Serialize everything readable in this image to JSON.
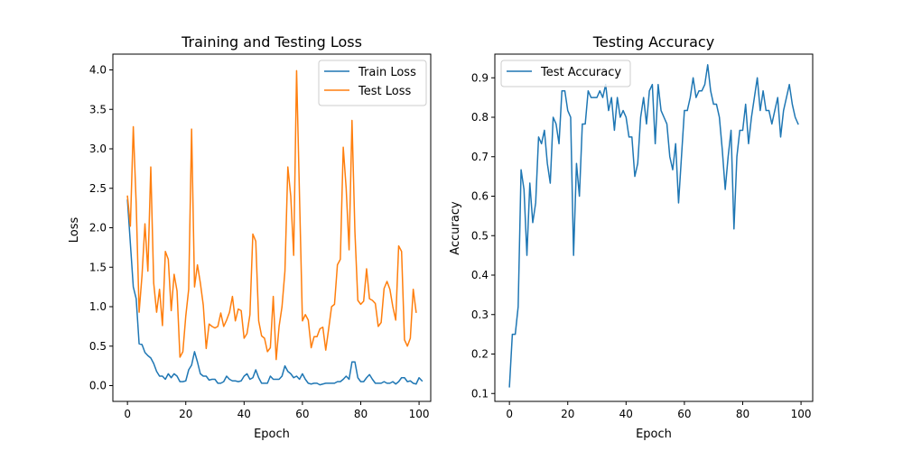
{
  "chart_data": [
    {
      "type": "line",
      "title": "Training and Testing Loss",
      "xlabel": "Epoch",
      "ylabel": "Loss",
      "xlim": [
        -5,
        104
      ],
      "ylim": [
        -0.2,
        4.2
      ],
      "xticks": [
        "0",
        "20",
        "40",
        "60",
        "80",
        "100"
      ],
      "xtick_values": [
        0,
        20,
        40,
        60,
        80,
        100
      ],
      "yticks": [
        "0.0",
        "0.5",
        "1.0",
        "1.5",
        "2.0",
        "2.5",
        "3.0",
        "3.5",
        "4.0"
      ],
      "ytick_values": [
        0,
        0.5,
        1,
        1.5,
        2,
        2.5,
        3,
        3.5,
        4
      ],
      "legend_position": "top-right",
      "series": [
        {
          "name": "Train Loss",
          "color": "#1f77b4",
          "values": [
            2.35,
            1.8,
            1.25,
            1.1,
            0.53,
            0.52,
            0.42,
            0.38,
            0.35,
            0.28,
            0.18,
            0.12,
            0.12,
            0.08,
            0.15,
            0.1,
            0.15,
            0.12,
            0.05,
            0.05,
            0.06,
            0.2,
            0.26,
            0.43,
            0.3,
            0.15,
            0.12,
            0.12,
            0.07,
            0.08,
            0.08,
            0.03,
            0.03,
            0.05,
            0.12,
            0.08,
            0.06,
            0.06,
            0.05,
            0.06,
            0.12,
            0.15,
            0.08,
            0.1,
            0.2,
            0.1,
            0.03,
            0.03,
            0.03,
            0.12,
            0.08,
            0.08,
            0.08,
            0.12,
            0.25,
            0.18,
            0.15,
            0.1,
            0.12,
            0.08,
            0.15,
            0.08,
            0.03,
            0.02,
            0.03,
            0.03,
            0.01,
            0.02,
            0.03,
            0.03,
            0.03,
            0.03,
            0.05,
            0.05,
            0.08,
            0.12,
            0.08,
            0.3,
            0.3,
            0.1,
            0.05,
            0.05,
            0.1,
            0.14,
            0.08,
            0.03,
            0.03,
            0.03,
            0.05,
            0.03,
            0.03,
            0.05,
            0.02,
            0.05,
            0.1,
            0.1,
            0.05,
            0.06,
            0.03,
            0.02,
            0.1,
            0.06
          ]
        },
        {
          "name": "Test Loss",
          "color": "#ff7f0e",
          "values": [
            2.4,
            2.02,
            3.28,
            2.3,
            0.93,
            1.4,
            2.05,
            1.45,
            2.77,
            1.3,
            0.93,
            1.22,
            0.76,
            1.7,
            1.6,
            0.95,
            1.41,
            1.2,
            0.36,
            0.43,
            0.88,
            1.22,
            3.25,
            1.25,
            1.53,
            1.3,
            1.02,
            0.47,
            0.78,
            0.75,
            0.73,
            0.75,
            0.92,
            0.75,
            0.83,
            0.93,
            1.13,
            0.82,
            0.97,
            0.95,
            0.6,
            0.66,
            0.9,
            1.92,
            1.83,
            0.82,
            0.63,
            0.6,
            0.43,
            0.48,
            1.13,
            0.33,
            0.75,
            1.0,
            1.45,
            2.77,
            2.4,
            1.65,
            3.99,
            2.4,
            0.82,
            0.9,
            0.83,
            0.48,
            0.62,
            0.62,
            0.72,
            0.74,
            0.45,
            0.72,
            1.0,
            1.03,
            1.53,
            1.6,
            3.02,
            2.5,
            1.72,
            3.36,
            1.95,
            1.08,
            1.03,
            1.07,
            1.48,
            1.1,
            1.08,
            1.04,
            0.75,
            0.8,
            1.23,
            1.32,
            1.22,
            1.0,
            0.83,
            1.77,
            1.7,
            0.58,
            0.5,
            0.6,
            1.22,
            0.93
          ]
        }
      ]
    },
    {
      "type": "line",
      "title": "Testing Accuracy",
      "xlabel": "Epoch",
      "ylabel": "Accuracy",
      "xlim": [
        -5,
        104
      ],
      "ylim": [
        0.08,
        0.96
      ],
      "xticks": [
        "0",
        "20",
        "40",
        "60",
        "80",
        "100"
      ],
      "xtick_values": [
        0,
        20,
        40,
        60,
        80,
        100
      ],
      "yticks": [
        "0.1",
        "0.2",
        "0.3",
        "0.4",
        "0.5",
        "0.6",
        "0.7",
        "0.8",
        "0.9"
      ],
      "ytick_values": [
        0.1,
        0.2,
        0.3,
        0.4,
        0.5,
        0.6,
        0.7,
        0.8,
        0.9
      ],
      "legend_position": "top-left",
      "series": [
        {
          "name": "Test Accuracy",
          "color": "#1f77b4",
          "values": [
            0.117,
            0.25,
            0.25,
            0.32,
            0.667,
            0.617,
            0.45,
            0.633,
            0.533,
            0.583,
            0.75,
            0.733,
            0.767,
            0.683,
            0.633,
            0.8,
            0.783,
            0.733,
            0.867,
            0.867,
            0.817,
            0.8,
            0.45,
            0.683,
            0.6,
            0.783,
            0.783,
            0.867,
            0.85,
            0.85,
            0.85,
            0.867,
            0.85,
            0.883,
            0.817,
            0.85,
            0.767,
            0.85,
            0.8,
            0.817,
            0.8,
            0.75,
            0.75,
            0.65,
            0.683,
            0.8,
            0.85,
            0.783,
            0.867,
            0.883,
            0.733,
            0.883,
            0.817,
            0.8,
            0.783,
            0.7,
            0.667,
            0.733,
            0.583,
            0.7,
            0.817,
            0.817,
            0.85,
            0.9,
            0.85,
            0.867,
            0.867,
            0.883,
            0.933,
            0.867,
            0.833,
            0.833,
            0.8,
            0.717,
            0.617,
            0.7,
            0.767,
            0.517,
            0.7,
            0.767,
            0.767,
            0.833,
            0.733,
            0.8,
            0.85,
            0.9,
            0.817,
            0.867,
            0.817,
            0.817,
            0.783,
            0.817,
            0.85,
            0.75,
            0.817,
            0.85,
            0.883,
            0.833,
            0.8,
            0.783
          ]
        }
      ]
    }
  ]
}
